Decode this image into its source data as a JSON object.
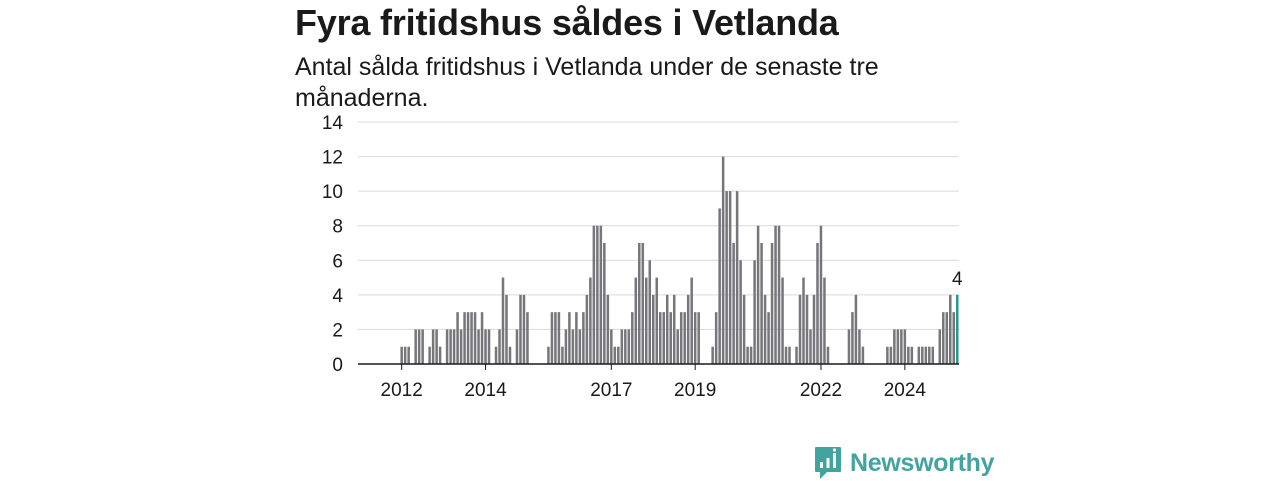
{
  "header": {
    "title": "Fyra fritidshus såldes i Vetlanda",
    "subtitle": "Antal sålda fritidshus i Vetlanda under de senaste tre månaderna."
  },
  "brand": {
    "name": "Newsworthy",
    "color": "#43a39f"
  },
  "chart_data": {
    "type": "bar",
    "ylim": [
      0,
      14
    ],
    "yticks": [
      0,
      2,
      4,
      6,
      8,
      10,
      12,
      14
    ],
    "xticks": [
      "2012",
      "2014",
      "2017",
      "2019",
      "2022",
      "2024"
    ],
    "grid": true,
    "bar_color": "#77767b",
    "highlight_color": "#26998e",
    "highlight_label": "4",
    "x_start": "2011-01",
    "values": [
      0,
      0,
      0,
      0,
      0,
      0,
      0,
      0,
      0,
      0,
      0,
      0,
      1,
      1,
      1,
      0,
      2,
      2,
      2,
      0,
      1,
      2,
      2,
      1,
      0,
      2,
      2,
      2,
      3,
      2,
      3,
      3,
      3,
      3,
      2,
      3,
      2,
      2,
      0,
      1,
      2,
      5,
      4,
      1,
      0,
      2,
      4,
      4,
      3,
      0,
      0,
      0,
      0,
      0,
      1,
      3,
      3,
      3,
      1,
      2,
      3,
      2,
      3,
      2,
      3,
      4,
      5,
      8,
      8,
      8,
      7,
      4,
      2,
      1,
      1,
      2,
      2,
      2,
      3,
      5,
      7,
      7,
      5,
      6,
      4,
      5,
      3,
      3,
      4,
      3,
      4,
      2,
      3,
      3,
      4,
      5,
      3,
      3,
      0,
      0,
      0,
      1,
      3,
      9,
      12,
      10,
      10,
      7,
      10,
      6,
      4,
      1,
      1,
      6,
      8,
      7,
      4,
      3,
      7,
      8,
      8,
      5,
      1,
      1,
      0,
      1,
      4,
      5,
      4,
      2,
      4,
      7,
      8,
      5,
      1,
      0,
      0,
      0,
      0,
      0,
      2,
      3,
      4,
      2,
      1,
      0,
      0,
      0,
      0,
      0,
      0,
      1,
      1,
      2,
      2,
      2,
      2,
      1,
      1,
      0,
      1,
      1,
      1,
      1,
      1,
      0,
      2,
      3,
      3,
      4,
      3,
      4
    ]
  }
}
